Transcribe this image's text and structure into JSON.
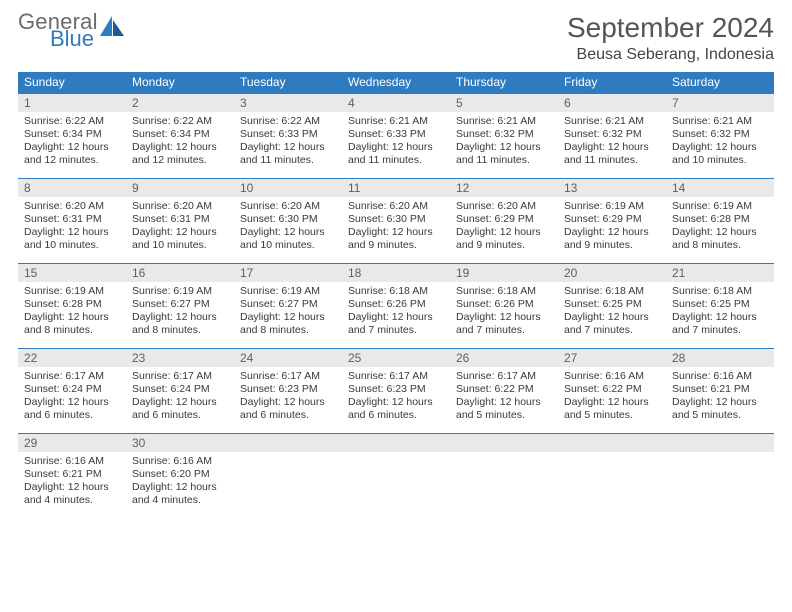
{
  "brand": {
    "general": "General",
    "blue": "Blue"
  },
  "colors": {
    "header_bg": "#2f7bbf",
    "daynum_bg": "#e9e9e9",
    "week_divider": "#2f7bbf",
    "text": "#333333",
    "logo_gray": "#6b6b6b",
    "logo_blue": "#2f7bbf"
  },
  "title": "September 2024",
  "location": "Beusa Seberang, Indonesia",
  "dow": [
    "Sunday",
    "Monday",
    "Tuesday",
    "Wednesday",
    "Thursday",
    "Friday",
    "Saturday"
  ],
  "weeks": [
    [
      {
        "n": "1",
        "sr": "6:22 AM",
        "ss": "6:34 PM",
        "dl": "12 hours and 12 minutes."
      },
      {
        "n": "2",
        "sr": "6:22 AM",
        "ss": "6:34 PM",
        "dl": "12 hours and 12 minutes."
      },
      {
        "n": "3",
        "sr": "6:22 AM",
        "ss": "6:33 PM",
        "dl": "12 hours and 11 minutes."
      },
      {
        "n": "4",
        "sr": "6:21 AM",
        "ss": "6:33 PM",
        "dl": "12 hours and 11 minutes."
      },
      {
        "n": "5",
        "sr": "6:21 AM",
        "ss": "6:32 PM",
        "dl": "12 hours and 11 minutes."
      },
      {
        "n": "6",
        "sr": "6:21 AM",
        "ss": "6:32 PM",
        "dl": "12 hours and 11 minutes."
      },
      {
        "n": "7",
        "sr": "6:21 AM",
        "ss": "6:32 PM",
        "dl": "12 hours and 10 minutes."
      }
    ],
    [
      {
        "n": "8",
        "sr": "6:20 AM",
        "ss": "6:31 PM",
        "dl": "12 hours and 10 minutes."
      },
      {
        "n": "9",
        "sr": "6:20 AM",
        "ss": "6:31 PM",
        "dl": "12 hours and 10 minutes."
      },
      {
        "n": "10",
        "sr": "6:20 AM",
        "ss": "6:30 PM",
        "dl": "12 hours and 10 minutes."
      },
      {
        "n": "11",
        "sr": "6:20 AM",
        "ss": "6:30 PM",
        "dl": "12 hours and 9 minutes."
      },
      {
        "n": "12",
        "sr": "6:20 AM",
        "ss": "6:29 PM",
        "dl": "12 hours and 9 minutes."
      },
      {
        "n": "13",
        "sr": "6:19 AM",
        "ss": "6:29 PM",
        "dl": "12 hours and 9 minutes."
      },
      {
        "n": "14",
        "sr": "6:19 AM",
        "ss": "6:28 PM",
        "dl": "12 hours and 8 minutes."
      }
    ],
    [
      {
        "n": "15",
        "sr": "6:19 AM",
        "ss": "6:28 PM",
        "dl": "12 hours and 8 minutes."
      },
      {
        "n": "16",
        "sr": "6:19 AM",
        "ss": "6:27 PM",
        "dl": "12 hours and 8 minutes."
      },
      {
        "n": "17",
        "sr": "6:19 AM",
        "ss": "6:27 PM",
        "dl": "12 hours and 8 minutes."
      },
      {
        "n": "18",
        "sr": "6:18 AM",
        "ss": "6:26 PM",
        "dl": "12 hours and 7 minutes."
      },
      {
        "n": "19",
        "sr": "6:18 AM",
        "ss": "6:26 PM",
        "dl": "12 hours and 7 minutes."
      },
      {
        "n": "20",
        "sr": "6:18 AM",
        "ss": "6:25 PM",
        "dl": "12 hours and 7 minutes."
      },
      {
        "n": "21",
        "sr": "6:18 AM",
        "ss": "6:25 PM",
        "dl": "12 hours and 7 minutes."
      }
    ],
    [
      {
        "n": "22",
        "sr": "6:17 AM",
        "ss": "6:24 PM",
        "dl": "12 hours and 6 minutes."
      },
      {
        "n": "23",
        "sr": "6:17 AM",
        "ss": "6:24 PM",
        "dl": "12 hours and 6 minutes."
      },
      {
        "n": "24",
        "sr": "6:17 AM",
        "ss": "6:23 PM",
        "dl": "12 hours and 6 minutes."
      },
      {
        "n": "25",
        "sr": "6:17 AM",
        "ss": "6:23 PM",
        "dl": "12 hours and 6 minutes."
      },
      {
        "n": "26",
        "sr": "6:17 AM",
        "ss": "6:22 PM",
        "dl": "12 hours and 5 minutes."
      },
      {
        "n": "27",
        "sr": "6:16 AM",
        "ss": "6:22 PM",
        "dl": "12 hours and 5 minutes."
      },
      {
        "n": "28",
        "sr": "6:16 AM",
        "ss": "6:21 PM",
        "dl": "12 hours and 5 minutes."
      }
    ],
    [
      {
        "n": "29",
        "sr": "6:16 AM",
        "ss": "6:21 PM",
        "dl": "12 hours and 4 minutes."
      },
      {
        "n": "30",
        "sr": "6:16 AM",
        "ss": "6:20 PM",
        "dl": "12 hours and 4 minutes."
      },
      null,
      null,
      null,
      null,
      null
    ]
  ],
  "labels": {
    "sunrise": "Sunrise:",
    "sunset": "Sunset:",
    "daylight": "Daylight:"
  }
}
